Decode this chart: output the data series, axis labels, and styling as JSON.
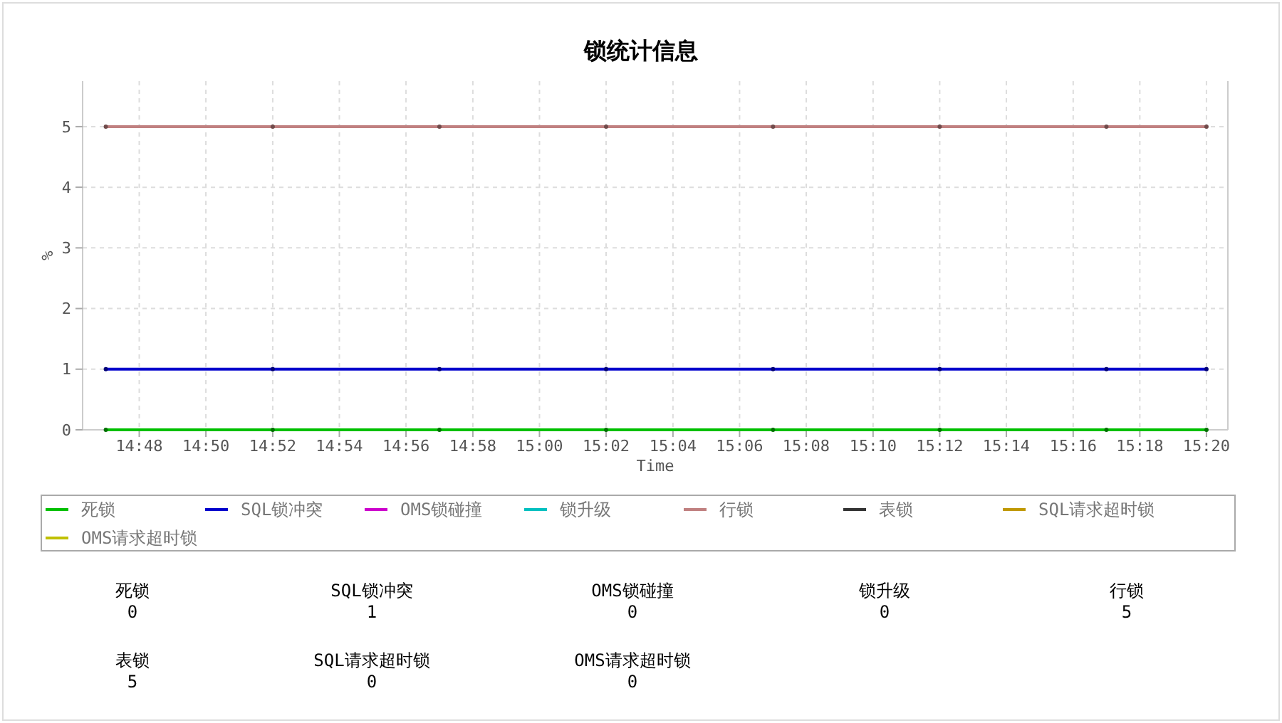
{
  "chart_data": [
    {
      "type": "line",
      "title": "锁统计信息",
      "xlabel": "Time",
      "ylabel": "%",
      "x": [
        14.7833,
        14.8667,
        14.95,
        15.0333,
        15.1167,
        15.2,
        15.2833,
        15.3333
      ],
      "series": [
        {
          "name": "死锁",
          "color": "#00c000",
          "values": [
            0,
            0,
            0,
            0,
            0,
            0,
            0,
            0
          ]
        },
        {
          "name": "SQL锁冲突",
          "color": "#0000cc",
          "values": [
            1,
            1,
            1,
            1,
            1,
            1,
            1,
            1
          ]
        },
        {
          "name": "OMS锁碰撞",
          "color": "#cc00cc",
          "values": [
            null,
            null,
            null,
            null,
            null,
            null,
            null,
            null
          ]
        },
        {
          "name": "锁升级",
          "color": "#00c0c0",
          "values": [
            null,
            null,
            null,
            null,
            null,
            null,
            null,
            null
          ]
        },
        {
          "name": "行锁",
          "color": "#c08080",
          "values": [
            5,
            5,
            5,
            5,
            5,
            5,
            5,
            5
          ]
        },
        {
          "name": "表锁",
          "color": "#333333",
          "values": [
            null,
            null,
            null,
            null,
            null,
            null,
            null,
            null
          ]
        },
        {
          "name": "SQL请求超时锁",
          "color": "#c09900",
          "values": [
            null,
            null,
            null,
            null,
            null,
            null,
            null,
            null
          ]
        },
        {
          "name": "OMS请求超时锁",
          "color": "#c0c000",
          "values": [
            null,
            null,
            null,
            null,
            null,
            null,
            null,
            null
          ]
        }
      ],
      "xlim": [
        14.7717,
        15.344
      ],
      "ylim": [
        0,
        5.75
      ],
      "xticks": [
        {
          "value": 14.8,
          "label": "14:48"
        },
        {
          "value": 14.8333,
          "label": "14:50"
        },
        {
          "value": 14.8667,
          "label": "14:52"
        },
        {
          "value": 14.9,
          "label": "14:54"
        },
        {
          "value": 14.9333,
          "label": "14:56"
        },
        {
          "value": 14.9667,
          "label": "14:58"
        },
        {
          "value": 15,
          "label": "15:00"
        },
        {
          "value": 15.0333,
          "label": "15:02"
        },
        {
          "value": 15.0667,
          "label": "15:04"
        },
        {
          "value": 15.1,
          "label": "15:06"
        },
        {
          "value": 15.1333,
          "label": "15:08"
        },
        {
          "value": 15.1667,
          "label": "15:10"
        },
        {
          "value": 15.2,
          "label": "15:12"
        },
        {
          "value": 15.2333,
          "label": "15:14"
        },
        {
          "value": 15.2667,
          "label": "15:16"
        },
        {
          "value": 15.3,
          "label": "15:18"
        },
        {
          "value": 15.3333,
          "label": "15:20"
        }
      ],
      "yticks": [
        0,
        1,
        2,
        3,
        4,
        5
      ],
      "grid": true,
      "legend": "bottom",
      "marker": "circle",
      "line_style": "solid"
    },
    {
      "type": "other",
      "categories": [
        "死锁",
        "SQL锁冲突",
        "OMS锁碰撞",
        "锁升级",
        "行锁",
        "表锁",
        "SQL请求超时锁",
        "OMS请求超时锁"
      ],
      "values": [
        0,
        1,
        0,
        0,
        5,
        5,
        0,
        0
      ],
      "data_labels": true
    }
  ]
}
